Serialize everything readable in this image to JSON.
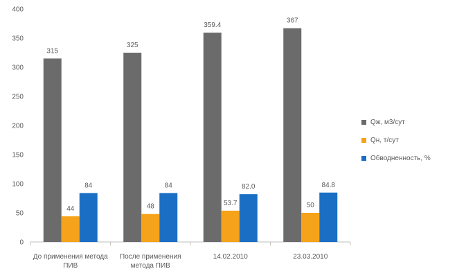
{
  "chart_data": {
    "type": "bar",
    "categories": [
      "До применения метода\nПИВ",
      "После применения\nметода ПИВ",
      "14.02.2010",
      "23.03.2010"
    ],
    "series": [
      {
        "name": "Qж, м3/сут",
        "values": [
          315,
          325,
          359.4,
          367
        ],
        "labels": [
          "315",
          "325",
          "359.4",
          "367"
        ],
        "color": "#6b6b6b"
      },
      {
        "name": "Qн, т/сут",
        "values": [
          44,
          48,
          53.7,
          50
        ],
        "labels": [
          "44",
          "48",
          "53.7",
          "50"
        ],
        "color": "#f5a31a"
      },
      {
        "name": "Обводненность, %",
        "values": [
          84,
          84,
          82.0,
          84.8
        ],
        "labels": [
          "84",
          "84",
          "82.0",
          "84.8"
        ],
        "color": "#1a6fc4"
      }
    ],
    "ylim": [
      0,
      400
    ],
    "yticks": [
      "0",
      "50",
      "100",
      "150",
      "200",
      "250",
      "300",
      "350",
      "400"
    ],
    "grid": false,
    "legend_position": "right"
  }
}
